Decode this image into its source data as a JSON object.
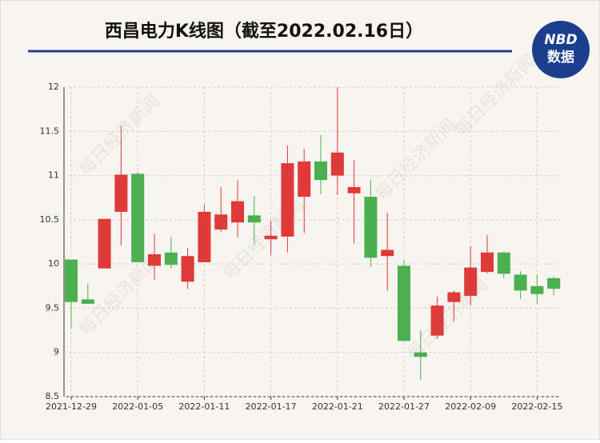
{
  "header": {
    "logo_top": "NBD",
    "logo_bottom": "数据"
  },
  "watermark": "每日经济新闻",
  "chart_data": {
    "type": "candlestick",
    "title": "西昌电力K线图（截至2022.02.16日）",
    "categories": [
      "2021-12-29",
      null,
      null,
      null,
      "2022-01-05",
      null,
      null,
      null,
      "2022-01-11",
      null,
      null,
      null,
      "2022-01-17",
      null,
      null,
      null,
      "2022-01-21",
      null,
      null,
      null,
      "2022-01-27",
      null,
      null,
      null,
      "2022-02-09",
      null,
      null,
      null,
      "2022-02-15",
      null
    ],
    "open": [
      10.05,
      9.6,
      9.95,
      10.59,
      11.02,
      9.98,
      10.13,
      9.8,
      10.02,
      10.39,
      10.47,
      10.55,
      10.28,
      10.31,
      10.76,
      11.16,
      11.0,
      10.8,
      10.76,
      10.09,
      9.98,
      9.0,
      9.19,
      9.57,
      9.64,
      9.91,
      10.13,
      9.88,
      9.75,
      9.84
    ],
    "high": [
      10.05,
      9.78,
      10.51,
      11.56,
      11.04,
      10.34,
      10.31,
      10.18,
      10.67,
      10.87,
      10.95,
      10.77,
      10.49,
      11.34,
      11.3,
      11.46,
      12.0,
      11.18,
      10.95,
      10.58,
      10.05,
      9.25,
      9.63,
      9.7,
      10.2,
      10.33,
      10.14,
      9.92,
      9.88,
      9.86
    ],
    "low": [
      9.27,
      9.55,
      9.95,
      10.21,
      10.02,
      9.82,
      9.95,
      9.72,
      10.02,
      10.36,
      10.3,
      10.22,
      10.1,
      10.13,
      10.35,
      10.79,
      10.78,
      10.23,
      9.97,
      9.7,
      9.13,
      8.69,
      9.15,
      9.35,
      9.53,
      9.89,
      9.84,
      9.6,
      9.55,
      9.65
    ],
    "close": [
      9.57,
      9.55,
      10.51,
      11.01,
      10.02,
      10.11,
      9.99,
      10.09,
      10.59,
      10.56,
      10.71,
      10.47,
      10.32,
      11.14,
      11.16,
      10.95,
      11.26,
      10.87,
      10.07,
      10.16,
      9.13,
      8.95,
      9.53,
      9.68,
      9.96,
      10.13,
      9.89,
      9.7,
      9.66,
      9.72
    ],
    "up_color": "#e0393a",
    "down_color": "#4caf50",
    "ylim": [
      8.5,
      12
    ],
    "yticks": [
      8.5,
      9,
      9.5,
      10,
      10.5,
      11,
      11.5,
      12
    ],
    "grid": true
  }
}
